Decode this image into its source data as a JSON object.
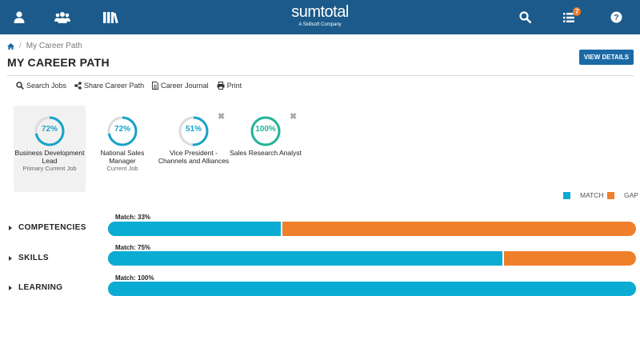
{
  "header": {
    "logo_main": "sumtotal",
    "logo_sub": "A Skillsoft Company",
    "notification_count": "7",
    "icons": [
      "user-icon",
      "team-icon",
      "library-icon",
      "search-icon",
      "list-icon",
      "help-icon"
    ]
  },
  "breadcrumb": {
    "current": "My Career Path"
  },
  "page": {
    "title": "MY CAREER PATH",
    "view_details": "VIEW DETAILS"
  },
  "toolbar": {
    "search_jobs": "Search Jobs",
    "share_career_path": "Share Career Path",
    "career_journal": "Career Journal",
    "print": "Print"
  },
  "jobs": [
    {
      "percent": 72,
      "label": "72%",
      "title": "Business Development Lead",
      "subtitle": "Primary Current Job",
      "color": "#17a3c7"
    },
    {
      "percent": 72,
      "label": "72%",
      "title": "National Sales Manager",
      "subtitle": "Current Job",
      "color": "#17a3c7"
    },
    {
      "percent": 51,
      "label": "51%",
      "title": "Vice President - Channels and Alliances",
      "subtitle": "",
      "color": "#17a3c7"
    },
    {
      "percent": 100,
      "label": "100%",
      "title": "Sales Research Analyst",
      "subtitle": "",
      "color": "#24b39a"
    }
  ],
  "legend": {
    "match": "MATCH",
    "gap": "GAP",
    "match_color": "#0bacd4",
    "gap_color": "#f07f2c"
  },
  "categories": [
    {
      "name": "COMPETENCIES",
      "match_label": "Match: 33%",
      "match": 0.33
    },
    {
      "name": "SKILLS",
      "match_label": "Match: 75%",
      "match": 0.75
    },
    {
      "name": "LEARNING",
      "match_label": "Match: 100%",
      "match": 1.0
    }
  ]
}
